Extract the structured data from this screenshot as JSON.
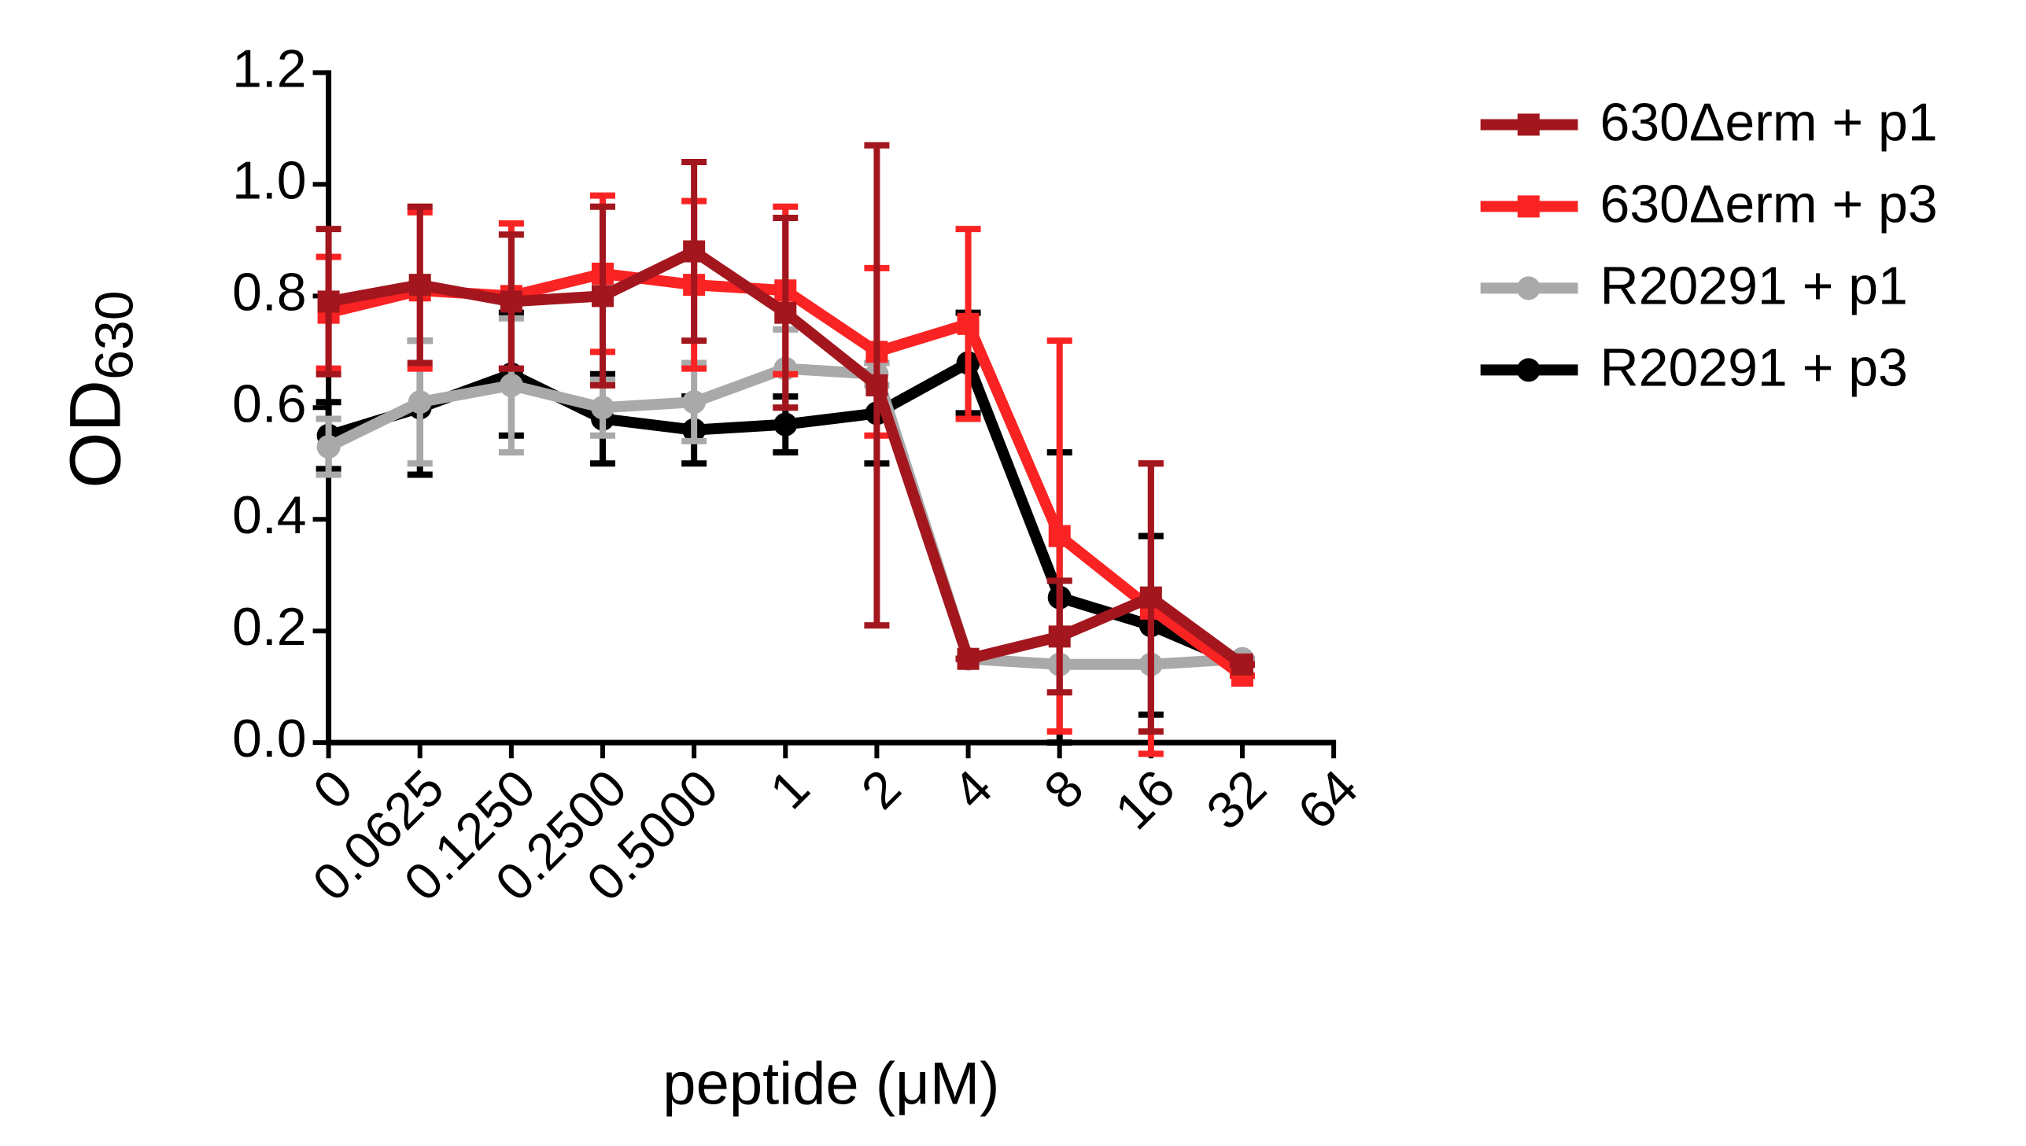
{
  "chart_data": {
    "type": "line",
    "xlabel": "peptide (μM)",
    "ylabel": "OD",
    "ylabel_sub": "630",
    "categories": [
      "0",
      "0.0625",
      "0.1250",
      "0.2500",
      "0.5000",
      "1",
      "2",
      "4",
      "8",
      "16",
      "32",
      "64"
    ],
    "ylim": [
      0,
      1.2
    ],
    "yticks": [
      {
        "value": 0,
        "label": "0.0"
      },
      {
        "value": 0.2,
        "label": "0.2"
      },
      {
        "value": 0.4,
        "label": "0.4"
      },
      {
        "value": 0.6,
        "label": "0.6"
      },
      {
        "value": 0.8,
        "label": "0.8"
      },
      {
        "value": 1.0,
        "label": "1.0"
      },
      {
        "value": 1.2,
        "label": "1.2"
      }
    ],
    "legend": "right",
    "series": [
      {
        "name": "630Δerm + p1",
        "color": "#a3161e",
        "marker": "square",
        "values": [
          0.79,
          0.82,
          0.79,
          0.8,
          0.88,
          0.77,
          0.64,
          0.15,
          0.19,
          0.26,
          0.14,
          null
        ],
        "errors": [
          0.13,
          0.14,
          0.12,
          0.16,
          0.16,
          0.17,
          0.43,
          0,
          0.1,
          0.24,
          0,
          null
        ]
      },
      {
        "name": "630Δerm + p3",
        "color": "#fa2323",
        "marker": "square",
        "values": [
          0.77,
          0.81,
          0.8,
          0.84,
          0.82,
          0.81,
          0.7,
          0.75,
          0.37,
          0.24,
          0.12,
          null
        ],
        "errors": [
          0.1,
          0.14,
          0.13,
          0.14,
          0.15,
          0.15,
          0.15,
          0.17,
          0.35,
          0.26,
          0,
          null
        ]
      },
      {
        "name": "R20291 + p1",
        "color": "#a9a9a9",
        "marker": "circle",
        "values": [
          0.53,
          0.61,
          0.64,
          0.6,
          0.61,
          0.67,
          0.66,
          0.15,
          0.14,
          0.14,
          0.15,
          null
        ],
        "errors": [
          0.05,
          0.11,
          0.12,
          0.05,
          0.07,
          0.07,
          0.02,
          0,
          0,
          0,
          0,
          null
        ]
      },
      {
        "name": "R20291 + p3",
        "color": "#000000",
        "marker": "circle",
        "values": [
          0.55,
          0.6,
          0.66,
          0.58,
          0.56,
          0.57,
          0.59,
          0.68,
          0.26,
          0.21,
          0.14,
          null
        ],
        "errors": [
          0.06,
          0.12,
          0.11,
          0.08,
          0.06,
          0.05,
          0.09,
          0.09,
          0.26,
          0.16,
          0,
          null
        ]
      }
    ]
  }
}
